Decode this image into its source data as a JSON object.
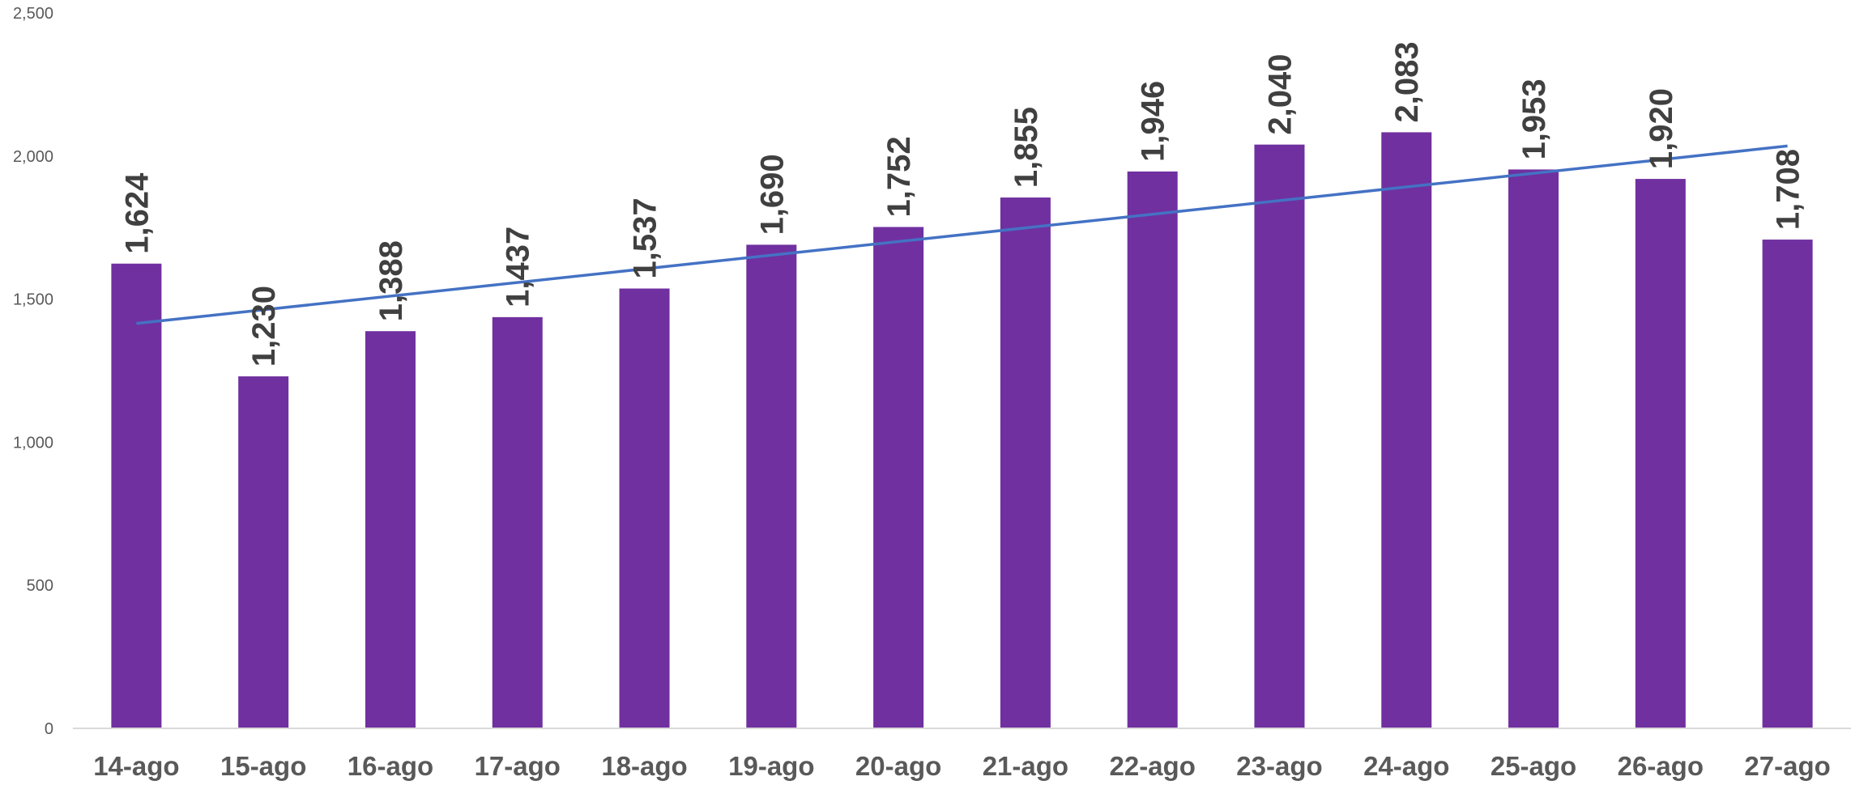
{
  "chart_data": {
    "type": "bar",
    "categories": [
      "14-ago",
      "15-ago",
      "16-ago",
      "17-ago",
      "18-ago",
      "19-ago",
      "20-ago",
      "21-ago",
      "22-ago",
      "23-ago",
      "24-ago",
      "25-ago",
      "26-ago",
      "27-ago"
    ],
    "series": [
      {
        "values": [
          1624,
          1230,
          1388,
          1437,
          1537,
          1690,
          1752,
          1855,
          1946,
          2040,
          2083,
          1953,
          1920,
          1708
        ]
      }
    ],
    "data_labels": [
      "1,624",
      "1,230",
      "1,388",
      "1,437",
      "1,537",
      "1,690",
      "1,752",
      "1,855",
      "1,946",
      "2,040",
      "2,083",
      "1,953",
      "1,920",
      "1,708"
    ],
    "trendline": {
      "type": "linear",
      "start": 1415,
      "end": 2035
    },
    "ylim": [
      0,
      2500
    ],
    "yticks": [
      0,
      500,
      1000,
      1500,
      2000,
      2500
    ],
    "ytick_labels": [
      "0",
      "500",
      "1,000",
      "1,500",
      "2,000",
      "2,500"
    ],
    "grid": false,
    "legend": "none",
    "title": "",
    "xlabel": "",
    "ylabel": "",
    "colors": {
      "bar": "#7030A0",
      "trendline": "#4472C4",
      "axis": "#D9D9D9"
    }
  }
}
